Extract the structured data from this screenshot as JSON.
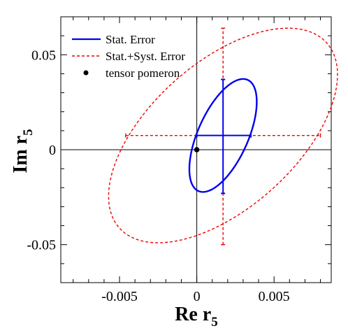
{
  "chart_data": {
    "type": "scatter",
    "xlabel": {
      "main": "Re r",
      "sub": "5"
    },
    "ylabel": {
      "main": "Im r",
      "sub": "5"
    },
    "xlim": [
      -0.0088,
      0.0087
    ],
    "ylim": [
      -0.07,
      0.07
    ],
    "x_ticks": [
      {
        "value": -0.005,
        "label": "-0.005"
      },
      {
        "value": 0,
        "label": "0"
      },
      {
        "value": 0.005,
        "label": "0.005"
      }
    ],
    "y_ticks": [
      {
        "value": -0.05,
        "label": "-0.05"
      },
      {
        "value": 0,
        "label": "0"
      },
      {
        "value": 0.05,
        "label": "0.05"
      }
    ],
    "x_minor_step": 0.001,
    "y_minor_step": 0.01,
    "zero_lines": true,
    "legend_position": "top-left",
    "legend": [
      {
        "label": "Stat. Error",
        "style": "solid",
        "color": "#0000ee"
      },
      {
        "label": "Stat.+Syst. Error",
        "style": "dashed",
        "color": "#ee0000"
      },
      {
        "label": "tensor pomeron",
        "style": "dot",
        "color": "#000000"
      }
    ],
    "central_value": {
      "x": 0.0017,
      "y": 0.0075
    },
    "stat_error": {
      "color": "#0000ee",
      "x_range": [
        0.0,
        0.0035
      ],
      "y_range": [
        -0.023,
        0.037
      ],
      "ellipse_points": [
        {
          "x": 0.0035,
          "y": 0.0075
        },
        {
          "x": 0.003,
          "y": 0.037
        },
        {
          "x": 0.0,
          "y": 0.0075
        },
        {
          "x": 0.0004,
          "y": -0.0225
        }
      ]
    },
    "total_error": {
      "color": "#ee0000",
      "x_range": [
        -0.0046,
        0.008
      ],
      "y_range": [
        -0.05,
        0.064
      ],
      "ellipse_points": [
        {
          "x": 0.0078,
          "y": 0.0075
        },
        {
          "x": 0.0059,
          "y": 0.0635
        },
        {
          "x": -0.0044,
          "y": 0.0075
        },
        {
          "x": -0.0025,
          "y": -0.0495
        }
      ]
    },
    "tensor_pomeron": {
      "x": 0.0,
      "y": 0.0,
      "color": "#000000"
    }
  }
}
